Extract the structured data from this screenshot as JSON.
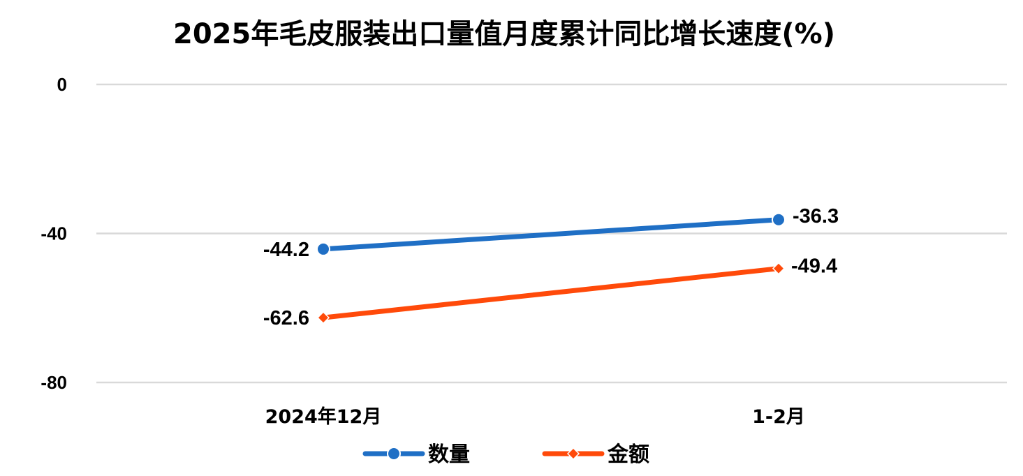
{
  "chart_data": {
    "type": "line",
    "title": "2025年毛皮服装出口量值月度累计同比增长速度(%)",
    "categories": [
      "2024年12月",
      "1-2月"
    ],
    "series": [
      {
        "name": "数量",
        "values": [
          -44.2,
          -36.3
        ],
        "labels": [
          "-44.2",
          "-36.3"
        ],
        "color": "#1f6fc5",
        "marker": "circle"
      },
      {
        "name": "金额",
        "values": [
          -62.6,
          -49.4
        ],
        "labels": [
          "-62.6",
          "-49.4"
        ],
        "color": "#ff4a0a",
        "marker": "diamond"
      }
    ],
    "ylim": [
      -80,
      0
    ],
    "yticks": [
      0,
      -40,
      -80
    ],
    "ytick_labels": [
      "0",
      "-40",
      "-80"
    ],
    "xlabel": "",
    "ylabel": "",
    "grid": true,
    "legend_position": "bottom"
  }
}
